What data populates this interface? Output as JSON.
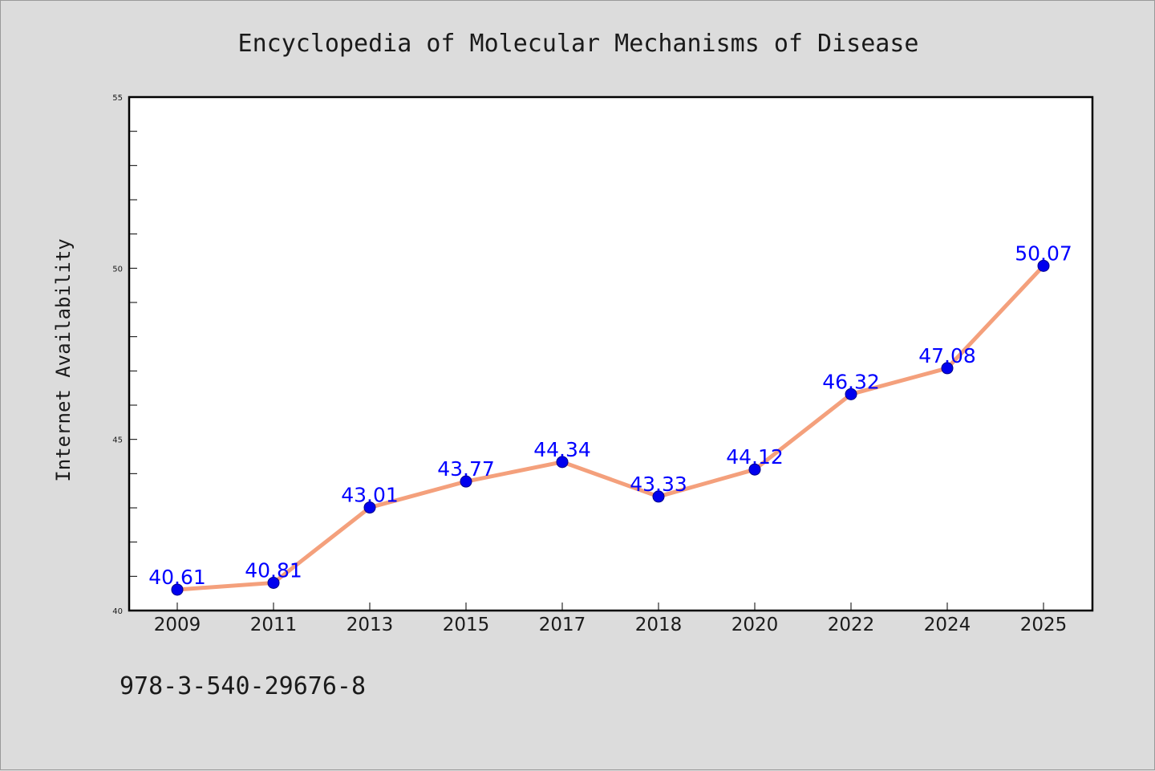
{
  "chart_data": {
    "type": "line",
    "title": "Encyclopedia of Molecular Mechanisms of Disease",
    "xlabel": "",
    "ylabel": "Internet Availability",
    "categories": [
      "2009",
      "2011",
      "2013",
      "2015",
      "2017",
      "2018",
      "2020",
      "2022",
      "2024",
      "2025"
    ],
    "series": [
      {
        "values": [
          40.61,
          40.81,
          43.01,
          43.77,
          44.34,
          43.33,
          44.12,
          46.32,
          47.08,
          50.07
        ],
        "labels": [
          "40.61",
          "40.81",
          "43.01",
          "43.77",
          "44.34",
          "43.33",
          "44.12",
          "46.32",
          "47.08",
          "50.07"
        ]
      }
    ],
    "ylim": [
      40,
      55
    ],
    "yticks": [
      "40",
      "45",
      "50",
      "55"
    ],
    "grid": false,
    "legend": "none",
    "colors": {
      "line": "#f4a07c",
      "marker": "#0000ee",
      "data_label": "#0000ff",
      "plot_background": "#ffffff",
      "page_background": "#dcdcdc"
    }
  },
  "footer": {
    "isbn": "978-3-540-29676-8"
  }
}
